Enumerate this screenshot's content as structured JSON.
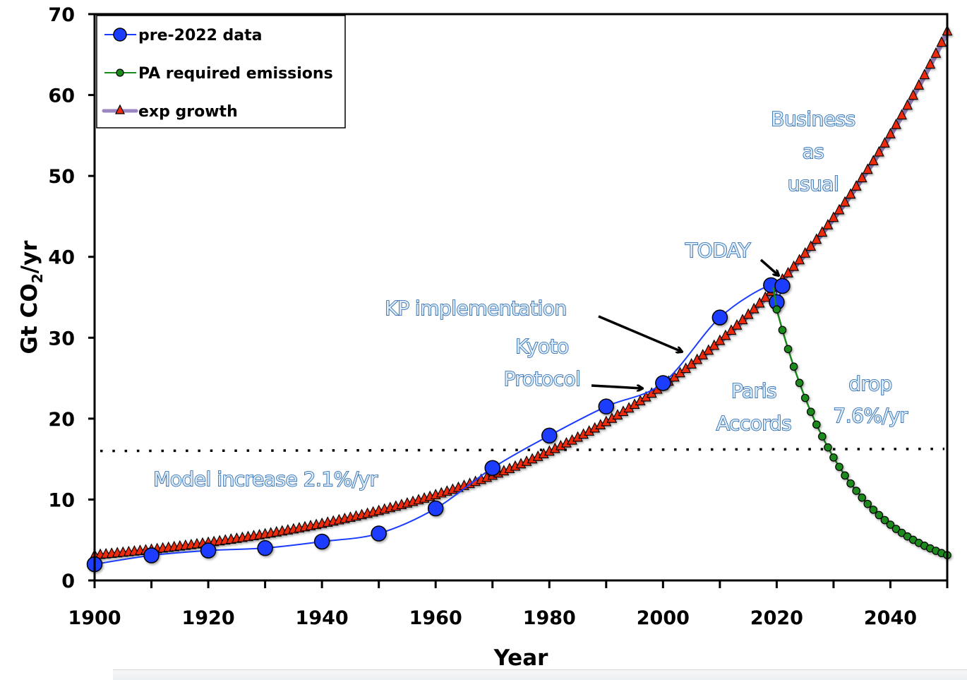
{
  "chart_data": {
    "type": "line",
    "title": "",
    "xlabel": "Year",
    "ylabel": "Gt CO2/yr",
    "ylabel_main": "Gt CO",
    "ylabel_sub": "2",
    "ylabel_tail": "/yr",
    "xlim": [
      1900,
      2050
    ],
    "ylim": [
      0,
      70
    ],
    "x_ticks_major": [
      1900,
      1920,
      1940,
      1960,
      1980,
      2000,
      2020,
      2040
    ],
    "x_ticks_minor_step": 10,
    "y_ticks": [
      0,
      10,
      20,
      30,
      40,
      50,
      60,
      70
    ],
    "grid": false,
    "legend_position": "top-left",
    "series": [
      {
        "name": "pre-2022 data",
        "color": "#1a3cff",
        "marker": "circle",
        "x": [
          1900,
          1910,
          1920,
          1930,
          1940,
          1950,
          1960,
          1970,
          1980,
          1990,
          2000,
          2010,
          2019,
          2020,
          2021
        ],
        "y": [
          2.0,
          3.1,
          3.7,
          4.0,
          4.8,
          5.8,
          8.9,
          13.9,
          17.9,
          21.5,
          24.4,
          32.5,
          36.5,
          34.4,
          36.4
        ]
      },
      {
        "name": "PA required emissions",
        "color": "#1a8a1a",
        "marker": "circle-small",
        "start_year": 2020,
        "end_year": 2050,
        "start_value": 33.5,
        "annual_change_pct": -7.6
      },
      {
        "name": "exp growth",
        "color": "#ee2a10",
        "line_color": "#9b85c2",
        "marker": "triangle",
        "start_year": 1900,
        "end_year": 2050,
        "start_value": 3.0,
        "annual_change_pct": 2.1
      }
    ],
    "reference_lines": [
      {
        "name": "reference-level",
        "y": 16,
        "style": "dotted"
      }
    ],
    "annotations": [
      {
        "id": "bau",
        "lines": [
          "Business",
          "as",
          "usual"
        ]
      },
      {
        "id": "today",
        "lines": [
          "TODAY"
        ],
        "arrow_to": [
          2020,
          37
        ]
      },
      {
        "id": "kp-impl",
        "lines": [
          "KP implementation"
        ],
        "arrow_to": [
          2004,
          28
        ]
      },
      {
        "id": "kyoto",
        "lines": [
          "Kyoto",
          "Protocol"
        ],
        "arrow_to": [
          1997,
          23.5
        ]
      },
      {
        "id": "paris",
        "lines": [
          "Paris",
          "Accords"
        ]
      },
      {
        "id": "drop",
        "lines": [
          "drop",
          "7.6%/yr"
        ]
      },
      {
        "id": "model",
        "lines": [
          "Model increase 2.1%/yr"
        ]
      }
    ]
  }
}
